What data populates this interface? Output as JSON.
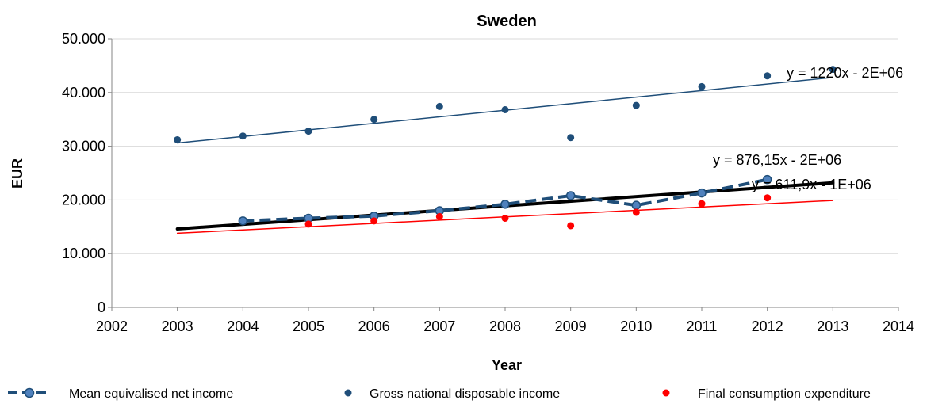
{
  "chart_data": {
    "type": "scatter",
    "title": "Sweden",
    "xlabel": "Year",
    "ylabel": "EUR",
    "xlim": [
      2002,
      2014
    ],
    "ylim": [
      0,
      50000
    ],
    "x_ticks": [
      2002,
      2003,
      2004,
      2005,
      2006,
      2007,
      2008,
      2009,
      2010,
      2011,
      2012,
      2013,
      2014
    ],
    "x_tick_labels": [
      "2002",
      "2003",
      "2004",
      "2005",
      "2006",
      "2007",
      "2008",
      "2009",
      "2010",
      "2011",
      "2012",
      "2013",
      "2014"
    ],
    "y_ticks": [
      0,
      10000,
      20000,
      30000,
      40000,
      50000
    ],
    "y_tick_labels": [
      "0",
      "10.000",
      "20.000",
      "30.000",
      "40.000",
      "50.000"
    ],
    "grid": "horizontal",
    "legend_position": "bottom",
    "series": [
      {
        "name": "Mean equivalised net income",
        "style": "dashed-line-markers",
        "color": "#1F4E79",
        "marker_color": "#4F81BD",
        "x": [
          2004,
          2005,
          2006,
          2007,
          2008,
          2009,
          2010,
          2011,
          2012
        ],
        "y": [
          16100,
          16600,
          17000,
          18000,
          19200,
          20800,
          19000,
          21300,
          23800
        ]
      },
      {
        "name": "Gross national disposable income",
        "style": "markers",
        "color": "#1F4E79",
        "x": [
          2003,
          2004,
          2005,
          2006,
          2007,
          2008,
          2009,
          2010,
          2011,
          2012,
          2013
        ],
        "y": [
          31200,
          31900,
          32800,
          35000,
          37400,
          36800,
          31600,
          37600,
          41100,
          43100,
          44300
        ]
      },
      {
        "name": "Final consumption expenditure",
        "style": "markers",
        "color": "#FF0000",
        "x": [
          2005,
          2006,
          2007,
          2008,
          2009,
          2010,
          2011,
          2012
        ],
        "y": [
          15500,
          16100,
          16900,
          16600,
          15200,
          17700,
          19300,
          20400
        ]
      }
    ],
    "trendlines": [
      {
        "color": "#1F4E79",
        "width": 1.5,
        "x": [
          2003,
          2013
        ],
        "y": [
          30600,
          42800
        ],
        "equation": "y = 1220x - 2E+06"
      },
      {
        "color": "#000000",
        "width": 4,
        "x": [
          2003,
          2013
        ],
        "y": [
          14600,
          23200
        ],
        "equation": "y = 876,15x - 2E+06"
      },
      {
        "color": "#FF0000",
        "width": 1.5,
        "x": [
          2003,
          2013
        ],
        "y": [
          13800,
          19900
        ],
        "equation": "y = 611,9x - 1E+06"
      }
    ]
  },
  "colors": {
    "axis": "#868686",
    "grid": "#D9D9D9"
  },
  "legend": {
    "items": [
      {
        "label": "Mean equivalised net income",
        "icon": "dashed-line-marker"
      },
      {
        "label": "Gross national disposable income",
        "icon": "dot-navy"
      },
      {
        "label": "Final consumption expenditure",
        "icon": "dot-red"
      }
    ]
  }
}
